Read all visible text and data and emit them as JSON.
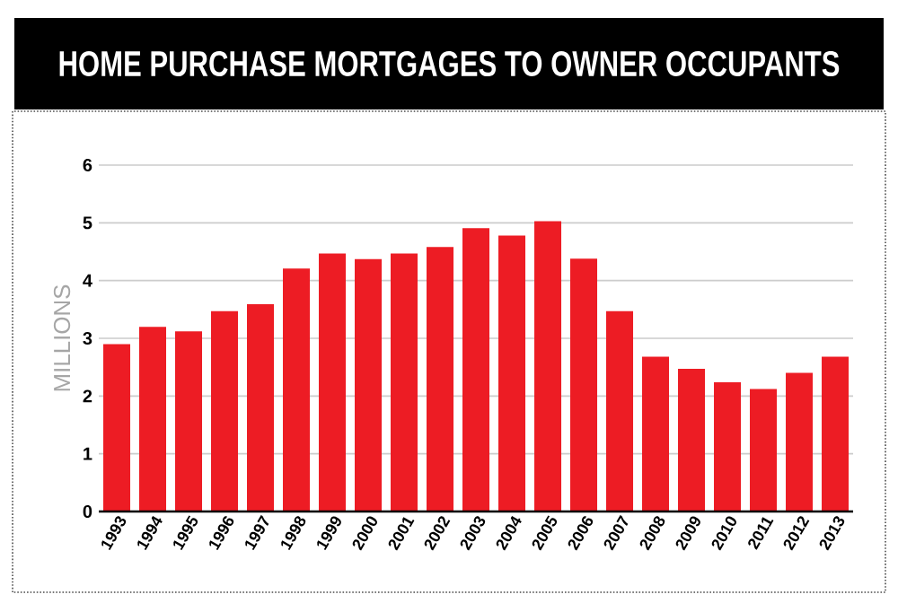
{
  "chart_data": {
    "type": "bar",
    "title": "HOME PURCHASE MORTGAGES TO OWNER OCCUPANTS",
    "ylabel": "MILLIONS",
    "categories": [
      "1993",
      "1994",
      "1995",
      "1996",
      "1997",
      "1998",
      "1999",
      "2000",
      "2001",
      "2002",
      "2003",
      "2004",
      "2005",
      "2006",
      "2007",
      "2008",
      "2009",
      "2010",
      "2011",
      "2012",
      "2013"
    ],
    "values": [
      2.9,
      3.2,
      3.12,
      3.47,
      3.59,
      4.21,
      4.47,
      4.37,
      4.47,
      4.58,
      4.91,
      4.78,
      5.03,
      4.38,
      3.47,
      2.68,
      2.47,
      2.24,
      2.12,
      2.4,
      2.68
    ],
    "color": "#ed1c24",
    "ylim": [
      0,
      6
    ],
    "yticks": [
      0,
      1,
      2,
      3,
      4,
      5,
      6
    ],
    "grid": "y"
  }
}
